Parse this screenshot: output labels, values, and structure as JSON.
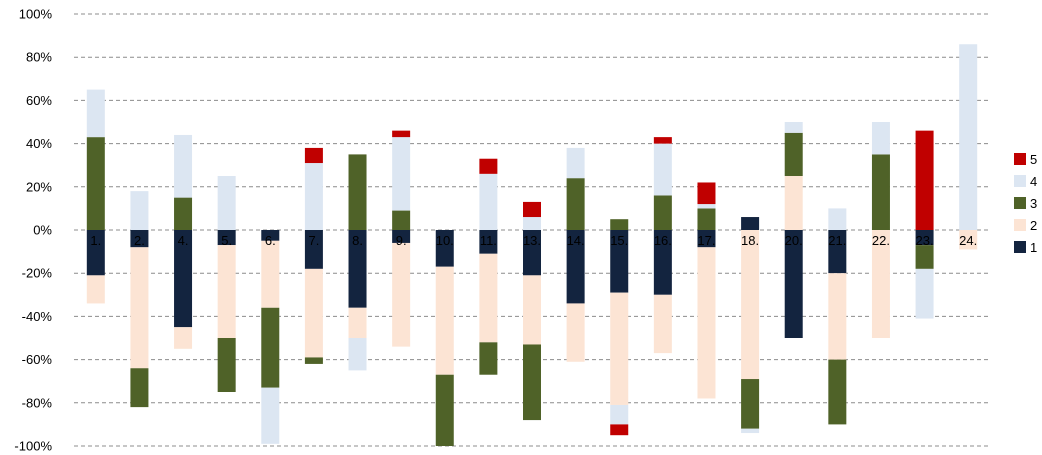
{
  "chart_data": {
    "type": "bar",
    "stacked": "diverging",
    "categories": [
      "1.",
      "2.",
      "4.",
      "5.",
      "6.",
      "7.",
      "8.",
      "9.",
      "10.",
      "11.",
      "13.",
      "14.",
      "15.",
      "16.",
      "17.",
      "18.",
      "20.",
      "21.",
      "22.",
      "23.",
      "24."
    ],
    "y_ticks": [
      "100%",
      "80%",
      "60%",
      "40%",
      "20%",
      "0%",
      "-20%",
      "-40%",
      "-60%",
      "-80%",
      "-100%"
    ],
    "ylim": [
      -100,
      100
    ],
    "grid": true,
    "legend_position": "right",
    "series": [
      {
        "name": "1",
        "color": "#13243f",
        "values": [
          -21,
          -8,
          -45,
          -7,
          -5,
          -18,
          -36,
          -6,
          -17,
          -11,
          -21,
          -34,
          -29,
          -30,
          -8,
          6,
          -50,
          -20,
          0,
          -7,
          0
        ]
      },
      {
        "name": "2",
        "color": "#fce4d4",
        "values": [
          -13,
          -56,
          -10,
          -43,
          -31,
          -41,
          -14,
          -48,
          -50,
          -41,
          -32,
          -27,
          -52,
          -27,
          -70,
          -69,
          25,
          -40,
          -50,
          0,
          -9
        ]
      },
      {
        "name": "3",
        "color": "#4f6228",
        "values": [
          43,
          -18,
          15,
          -25,
          -37,
          -3,
          35,
          9,
          -33,
          -15,
          -35,
          24,
          5,
          16,
          10,
          -23,
          20,
          -30,
          35,
          -11,
          0
        ]
      },
      {
        "name": "4",
        "color": "#dce6f2",
        "values": [
          22,
          18,
          29,
          25,
          -26,
          31,
          -15,
          34,
          0,
          26,
          6,
          14,
          -9,
          24,
          2,
          -2,
          5,
          10,
          15,
          -23,
          86
        ]
      },
      {
        "name": "5",
        "color": "#c00000",
        "values": [
          0,
          0,
          0,
          0,
          0,
          7,
          0,
          3,
          0,
          7,
          7,
          0,
          -5,
          3,
          10,
          0,
          0,
          0,
          0,
          46,
          0
        ]
      }
    ]
  }
}
